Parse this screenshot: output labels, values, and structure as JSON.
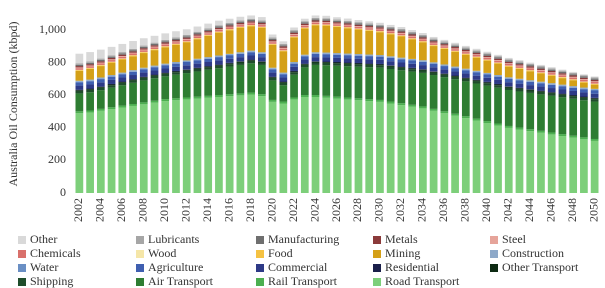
{
  "chart_data": {
    "type": "stacked-bar",
    "y_label": "Australia Oil Consumption (kbpd)",
    "categories": [
      "2002",
      null,
      "2004",
      null,
      "2006",
      null,
      "2008",
      null,
      "2010",
      null,
      "2012",
      null,
      "2014",
      null,
      "2016",
      null,
      "2018",
      null,
      "2020",
      null,
      "2022",
      null,
      "2024",
      null,
      "2026",
      null,
      "2028",
      null,
      "2030",
      null,
      "2032",
      null,
      "2034",
      null,
      "2036",
      null,
      "2038",
      null,
      "2040",
      null,
      "2042",
      null,
      "2044",
      null,
      "2046",
      null,
      "2048",
      null,
      "2050"
    ],
    "ylim": [
      0,
      1100
    ],
    "yticks": [
      0,
      200,
      400,
      600,
      800,
      {
        "value": 1000,
        "label": "1,000"
      }
    ],
    "series": [
      {
        "name": "Other",
        "color": "#d9d9d9",
        "values": [
          60,
          58,
          55,
          52,
          50,
          48,
          45,
          42,
          40,
          38,
          35,
          32,
          30,
          28,
          25,
          22,
          20,
          20,
          18,
          16,
          16,
          15,
          15,
          15,
          14,
          14,
          13,
          13,
          12,
          12,
          12,
          11,
          11,
          10,
          10,
          10,
          9,
          9,
          9,
          8,
          8,
          8,
          7,
          7,
          7,
          6,
          6,
          5,
          5
        ]
      },
      {
        "name": "Lubricants",
        "color": "#a6a6a6",
        "values": [
          8,
          8,
          8,
          8,
          8,
          8,
          8,
          8,
          8,
          8,
          8,
          8,
          8,
          8,
          8,
          8,
          8,
          8,
          8,
          8,
          8,
          8,
          8,
          8,
          8,
          8,
          8,
          8,
          8,
          8,
          8,
          8,
          8,
          8,
          8,
          8,
          8,
          8,
          8,
          8,
          8,
          8,
          8,
          8,
          8,
          8,
          8,
          8,
          8
        ]
      },
      {
        "name": "Manufacturing",
        "color": "#6f6f6f",
        "values": [
          8,
          8,
          8,
          8,
          8,
          8,
          8,
          8,
          8,
          8,
          8,
          8,
          8,
          8,
          8,
          8,
          8,
          8,
          8,
          8,
          8,
          8,
          8,
          8,
          8,
          8,
          8,
          8,
          8,
          8,
          8,
          8,
          8,
          8,
          8,
          8,
          8,
          8,
          8,
          8,
          8,
          8,
          8,
          8,
          8,
          8,
          8,
          8,
          8
        ]
      },
      {
        "name": "Metals",
        "color": "#8b3a3a",
        "values": [
          8,
          8,
          8,
          8,
          8,
          8,
          8,
          8,
          8,
          8,
          8,
          8,
          8,
          8,
          8,
          8,
          8,
          8,
          8,
          8,
          8,
          8,
          8,
          8,
          8,
          8,
          8,
          8,
          8,
          8,
          8,
          8,
          8,
          8,
          8,
          8,
          8,
          8,
          8,
          8,
          8,
          8,
          8,
          8,
          8,
          8,
          8,
          8,
          8
        ]
      },
      {
        "name": "Steel",
        "color": "#e6a49a",
        "values": [
          5,
          5,
          5,
          5,
          5,
          5,
          5,
          5,
          5,
          5,
          5,
          5,
          5,
          5,
          5,
          5,
          5,
          5,
          5,
          5,
          5,
          5,
          5,
          5,
          5,
          5,
          5,
          5,
          5,
          5,
          5,
          5,
          5,
          5,
          5,
          5,
          5,
          5,
          5,
          5,
          5,
          5,
          5,
          5,
          5,
          5,
          5,
          5,
          5
        ]
      },
      {
        "name": "Chemicals",
        "color": "#d9706b",
        "values": [
          10,
          10,
          10,
          10,
          10,
          10,
          10,
          10,
          10,
          10,
          10,
          10,
          10,
          10,
          10,
          10,
          10,
          10,
          10,
          10,
          10,
          10,
          10,
          10,
          10,
          10,
          10,
          10,
          10,
          10,
          10,
          10,
          10,
          10,
          10,
          10,
          10,
          10,
          10,
          10,
          10,
          10,
          10,
          10,
          10,
          10,
          10,
          10,
          10
        ]
      },
      {
        "name": "Wood",
        "color": "#f5e6a8",
        "values": [
          2,
          2,
          2,
          2,
          2,
          2,
          2,
          2,
          2,
          2,
          2,
          2,
          2,
          2,
          2,
          2,
          2,
          2,
          2,
          2,
          2,
          2,
          2,
          2,
          2,
          2,
          2,
          2,
          2,
          2,
          2,
          2,
          2,
          2,
          2,
          2,
          2,
          2,
          2,
          2,
          2,
          2,
          2,
          2,
          2,
          2,
          2,
          2,
          2
        ]
      },
      {
        "name": "Food",
        "color": "#f5c242",
        "values": [
          5,
          5,
          5,
          5,
          5,
          5,
          5,
          5,
          5,
          5,
          5,
          5,
          5,
          5,
          5,
          5,
          5,
          5,
          5,
          5,
          5,
          5,
          5,
          5,
          5,
          5,
          5,
          5,
          5,
          5,
          5,
          5,
          5,
          5,
          5,
          5,
          5,
          5,
          5,
          5,
          5,
          5,
          5,
          5,
          5,
          5,
          5,
          5,
          5
        ]
      },
      {
        "name": "Mining",
        "color": "#d4a017",
        "values": [
          60,
          65,
          70,
          75,
          80,
          85,
          90,
          95,
          100,
          105,
          110,
          120,
          130,
          140,
          145,
          150,
          150,
          150,
          140,
          130,
          150,
          160,
          165,
          165,
          160,
          155,
          150,
          145,
          140,
          135,
          130,
          120,
          110,
          100,
          95,
          90,
          85,
          80,
          75,
          70,
          65,
          60,
          55,
          50,
          45,
          40,
          35,
          30,
          25
        ]
      },
      {
        "name": "Construction",
        "color": "#8ea9c9",
        "values": [
          7,
          7,
          7,
          7,
          7,
          7,
          7,
          7,
          7,
          7,
          7,
          7,
          7,
          7,
          7,
          7,
          7,
          7,
          7,
          7,
          7,
          7,
          7,
          7,
          7,
          7,
          7,
          7,
          7,
          7,
          7,
          7,
          7,
          7,
          7,
          7,
          7,
          7,
          7,
          7,
          7,
          7,
          7,
          7,
          7,
          7,
          7,
          7,
          7
        ]
      },
      {
        "name": "Water",
        "color": "#6a8fc4",
        "values": [
          3,
          3,
          3,
          3,
          3,
          3,
          3,
          3,
          3,
          3,
          3,
          3,
          3,
          3,
          3,
          3,
          3,
          3,
          3,
          3,
          3,
          3,
          3,
          3,
          3,
          3,
          3,
          3,
          3,
          3,
          3,
          3,
          3,
          3,
          3,
          3,
          3,
          3,
          3,
          3,
          3,
          3,
          3,
          3,
          3,
          3,
          3,
          3,
          3
        ]
      },
      {
        "name": "Agriculture",
        "color": "#3f5fb0",
        "values": [
          20,
          20,
          20,
          20,
          20,
          20,
          20,
          20,
          20,
          20,
          20,
          20,
          20,
          20,
          20,
          20,
          20,
          20,
          20,
          20,
          20,
          20,
          20,
          20,
          20,
          20,
          20,
          20,
          20,
          20,
          20,
          20,
          20,
          20,
          20,
          20,
          20,
          20,
          20,
          20,
          20,
          20,
          20,
          20,
          20,
          20,
          20,
          20,
          20
        ]
      },
      {
        "name": "Commercial",
        "color": "#2e3a87",
        "values": [
          25,
          25,
          25,
          25,
          25,
          25,
          25,
          25,
          25,
          25,
          25,
          25,
          25,
          25,
          25,
          25,
          25,
          25,
          25,
          25,
          25,
          25,
          25,
          25,
          25,
          25,
          25,
          25,
          25,
          25,
          25,
          25,
          25,
          25,
          25,
          25,
          25,
          25,
          25,
          25,
          25,
          25,
          25,
          25,
          25,
          25,
          25,
          25,
          25
        ]
      },
      {
        "name": "Residential",
        "color": "#1a1f4a",
        "values": [
          3,
          3,
          3,
          3,
          3,
          3,
          3,
          3,
          3,
          3,
          3,
          3,
          3,
          3,
          3,
          3,
          3,
          3,
          3,
          3,
          3,
          3,
          3,
          3,
          3,
          3,
          3,
          3,
          3,
          3,
          3,
          3,
          3,
          3,
          3,
          3,
          3,
          3,
          3,
          3,
          3,
          3,
          3,
          3,
          3,
          3,
          3,
          3,
          3
        ]
      },
      {
        "name": "Other Transport",
        "color": "#0d2a12",
        "values": [
          5,
          5,
          5,
          5,
          5,
          5,
          5,
          5,
          5,
          5,
          5,
          5,
          5,
          5,
          5,
          5,
          5,
          5,
          5,
          5,
          5,
          5,
          5,
          5,
          5,
          5,
          5,
          5,
          5,
          5,
          5,
          5,
          5,
          5,
          5,
          5,
          5,
          5,
          5,
          5,
          5,
          5,
          5,
          5,
          5,
          5,
          5,
          5,
          5
        ]
      },
      {
        "name": "Shipping",
        "color": "#1f4d2b",
        "values": [
          15,
          15,
          15,
          15,
          15,
          15,
          15,
          15,
          15,
          15,
          15,
          15,
          15,
          15,
          15,
          15,
          15,
          15,
          15,
          15,
          15,
          15,
          15,
          15,
          15,
          15,
          15,
          15,
          15,
          15,
          15,
          15,
          15,
          15,
          15,
          15,
          15,
          15,
          15,
          15,
          15,
          15,
          15,
          15,
          15,
          15,
          15,
          15,
          15
        ]
      },
      {
        "name": "Air Transport",
        "color": "#2e7d32",
        "values": [
          110,
          112,
          115,
          120,
          125,
          130,
          135,
          138,
          140,
          145,
          150,
          155,
          160,
          165,
          170,
          175,
          180,
          180,
          120,
          100,
          140,
          170,
          185,
          188,
          190,
          192,
          194,
          196,
          198,
          200,
          202,
          204,
          206,
          208,
          210,
          212,
          214,
          216,
          218,
          220,
          221,
          222,
          223,
          224,
          225,
          226,
          227,
          228,
          230
        ]
      },
      {
        "name": "Rail Transport",
        "color": "#4caf50",
        "values": [
          12,
          12,
          12,
          12,
          12,
          12,
          12,
          12,
          12,
          12,
          12,
          12,
          12,
          12,
          12,
          12,
          12,
          12,
          12,
          12,
          12,
          12,
          12,
          12,
          12,
          12,
          12,
          12,
          12,
          12,
          12,
          12,
          12,
          12,
          12,
          12,
          12,
          12,
          12,
          12,
          12,
          12,
          12,
          12,
          12,
          12,
          12,
          12,
          12
        ]
      },
      {
        "name": "Road Transport",
        "color": "#7dcf7a",
        "values": [
          490,
          495,
          505,
          515,
          525,
          535,
          545,
          555,
          565,
          570,
          575,
          580,
          585,
          590,
          595,
          600,
          605,
          595,
          560,
          550,
          575,
          590,
          590,
          585,
          580,
          575,
          570,
          565,
          560,
          550,
          540,
          530,
          520,
          505,
          490,
          475,
          460,
          445,
          430,
          415,
          400,
          390,
          380,
          370,
          360,
          350,
          340,
          330,
          320
        ]
      }
    ]
  }
}
